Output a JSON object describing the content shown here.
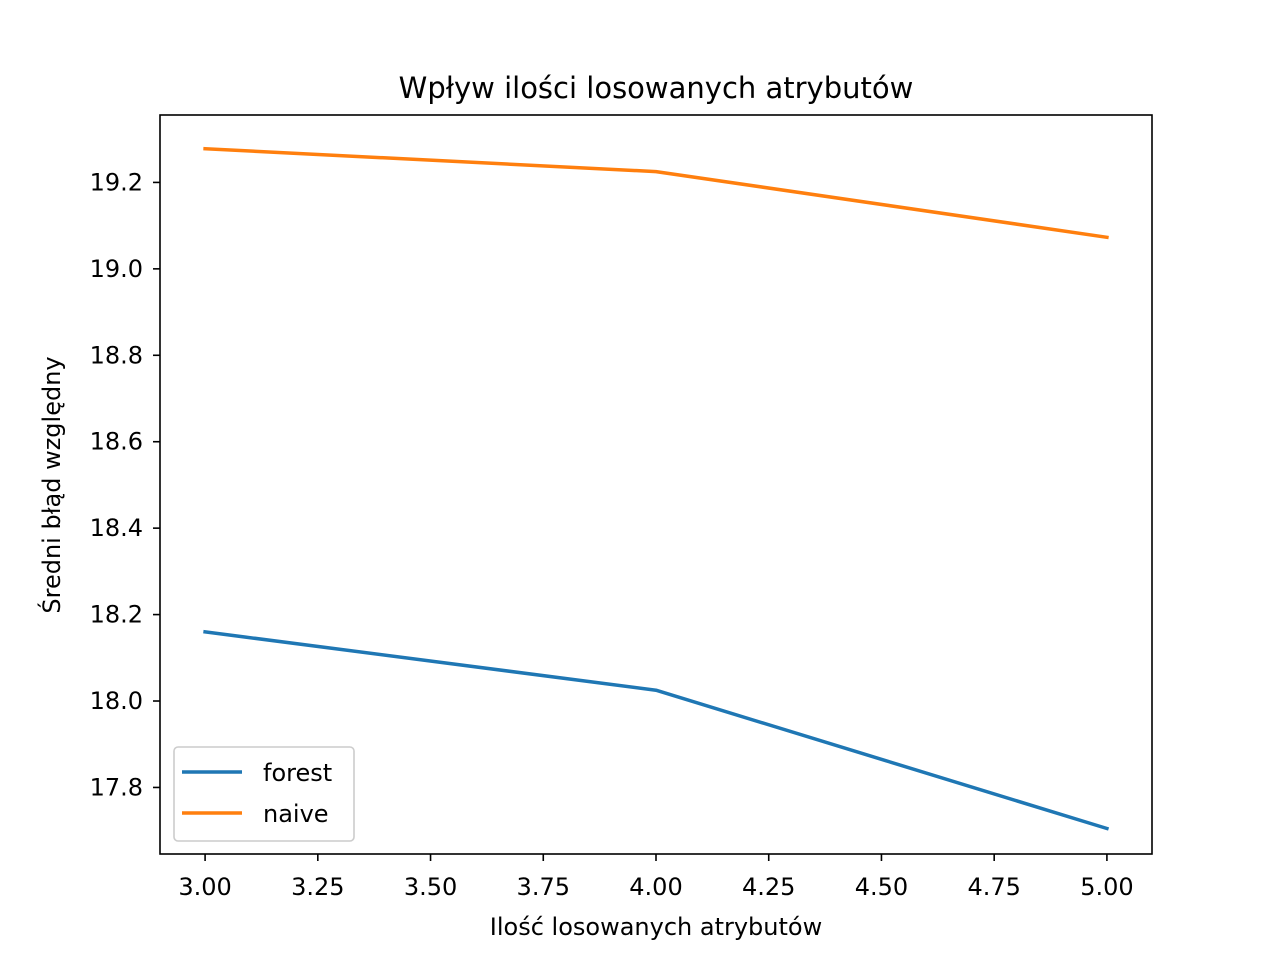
{
  "chart_data": {
    "type": "line",
    "title": "Wpływ ilości losowanych atrybutów",
    "xlabel": "Ilość losowanych atrybutów",
    "ylabel": "Średni błąd względny",
    "x": [
      3,
      4,
      5
    ],
    "series": [
      {
        "name": "forest",
        "color": "#1f77b4",
        "values": [
          18.16,
          18.025,
          17.705
        ]
      },
      {
        "name": "naive",
        "color": "#ff7f0e",
        "values": [
          19.278,
          19.225,
          19.073
        ]
      }
    ],
    "xlim": [
      2.9,
      5.1
    ],
    "ylim": [
      17.646,
      19.356
    ],
    "xticks": [
      3.0,
      3.25,
      3.5,
      3.75,
      4.0,
      4.25,
      4.5,
      4.75,
      5.0
    ],
    "xtick_labels": [
      "3.00",
      "3.25",
      "3.50",
      "3.75",
      "4.00",
      "4.25",
      "4.50",
      "4.75",
      "5.00"
    ],
    "yticks": [
      17.8,
      18.0,
      18.2,
      18.4,
      18.6,
      18.8,
      19.0,
      19.2
    ],
    "ytick_labels": [
      "17.8",
      "18.0",
      "18.2",
      "18.4",
      "18.6",
      "18.8",
      "19.0",
      "19.2"
    ],
    "grid": false,
    "legend_position": "lower-left"
  }
}
